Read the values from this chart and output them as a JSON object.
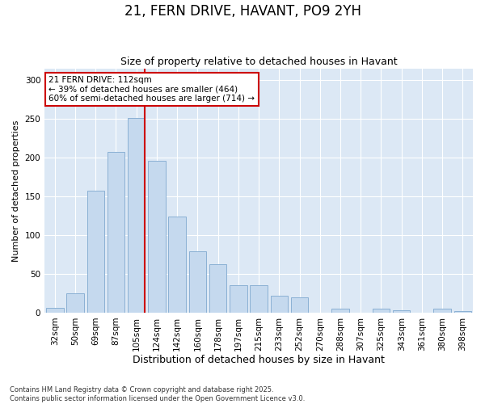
{
  "title": "21, FERN DRIVE, HAVANT, PO9 2YH",
  "subtitle": "Size of property relative to detached houses in Havant",
  "xlabel": "Distribution of detached houses by size in Havant",
  "ylabel": "Number of detached properties",
  "categories": [
    "32sqm",
    "50sqm",
    "69sqm",
    "87sqm",
    "105sqm",
    "124sqm",
    "142sqm",
    "160sqm",
    "178sqm",
    "197sqm",
    "215sqm",
    "233sqm",
    "252sqm",
    "270sqm",
    "288sqm",
    "307sqm",
    "325sqm",
    "343sqm",
    "361sqm",
    "380sqm",
    "398sqm"
  ],
  "values": [
    6,
    25,
    157,
    207,
    251,
    196,
    124,
    79,
    62,
    35,
    35,
    22,
    20,
    0,
    5,
    0,
    5,
    3,
    0,
    5,
    2
  ],
  "bar_color": "#c5d9ee",
  "bar_edge_color": "#8ab0d4",
  "property_bar_index": 4,
  "annotation_text": "21 FERN DRIVE: 112sqm\n← 39% of detached houses are smaller (464)\n60% of semi-detached houses are larger (714) →",
  "line_color": "#cc0000",
  "footer": "Contains HM Land Registry data © Crown copyright and database right 2025.\nContains public sector information licensed under the Open Government Licence v3.0.",
  "ylim": [
    0,
    315
  ],
  "yticks": [
    0,
    50,
    100,
    150,
    200,
    250,
    300
  ],
  "fig_bg_color": "#ffffff",
  "plot_bg_color": "#dce8f5",
  "title_fontsize": 12,
  "subtitle_fontsize": 9,
  "xlabel_fontsize": 9,
  "ylabel_fontsize": 8,
  "tick_fontsize": 7.5,
  "annotation_fontsize": 7.5,
  "footer_fontsize": 6
}
